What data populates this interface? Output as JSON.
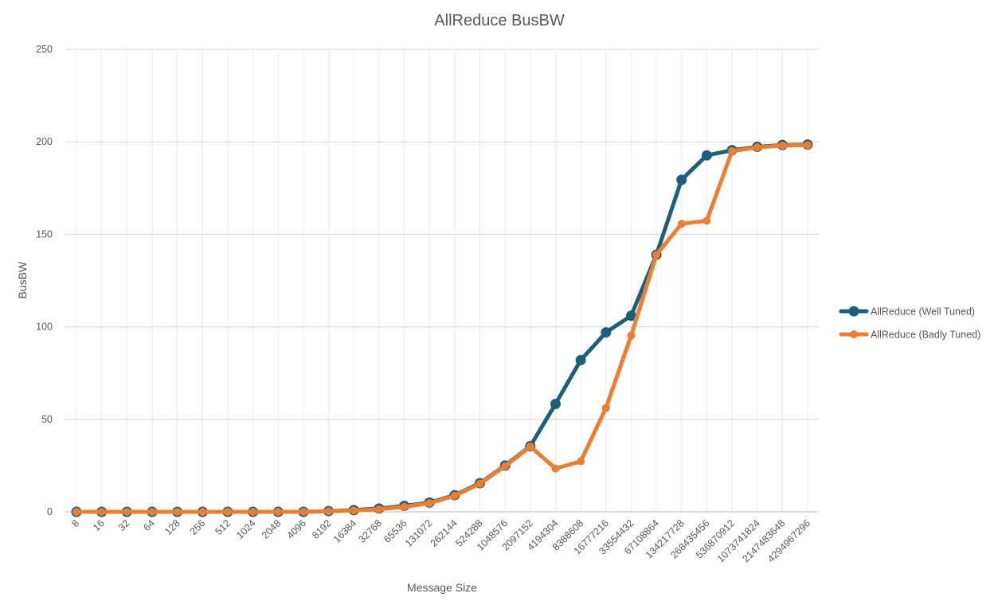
{
  "chart_data": {
    "type": "line",
    "title": "AllReduce BusBW",
    "xlabel": "Message Size",
    "ylabel": "BusBW",
    "ylim": [
      0,
      250
    ],
    "yticks": [
      0,
      50,
      100,
      150,
      200,
      250
    ],
    "grid": true,
    "legend_position": "right",
    "categories": [
      "8",
      "16",
      "32",
      "64",
      "128",
      "256",
      "512",
      "1024",
      "2048",
      "4096",
      "8192",
      "16384",
      "32768",
      "65536",
      "131072",
      "262144",
      "524288",
      "1048576",
      "2097152",
      "4194304",
      "8388608",
      "16777216",
      "33554432",
      "67108864",
      "134217728",
      "268435456",
      "536870912",
      "1073741824",
      "2147483648",
      "4294967296"
    ],
    "series": [
      {
        "name": "AllReduce (Well Tuned)",
        "color": "#1b5f7b",
        "values": [
          0,
          0,
          0,
          0,
          0,
          0,
          0,
          0,
          0,
          0,
          0.4,
          0.9,
          1.8,
          3.2,
          5,
          9,
          15.5,
          25,
          35.5,
          58.3,
          82,
          97,
          106,
          139,
          179.5,
          192.7,
          195.5,
          197.3,
          198.3,
          198.5
        ]
      },
      {
        "name": "AllReduce (Badly Tuned)",
        "color": "#ed7d31",
        "values": [
          0,
          0,
          0,
          0,
          0,
          0,
          0,
          0,
          0,
          0,
          0.3,
          0.7,
          1.4,
          2.7,
          4.7,
          8.7,
          15.2,
          24.7,
          35.3,
          23.4,
          27.3,
          56.2,
          95.3,
          139,
          155.7,
          157.4,
          195,
          197,
          198,
          198.2
        ]
      }
    ]
  }
}
